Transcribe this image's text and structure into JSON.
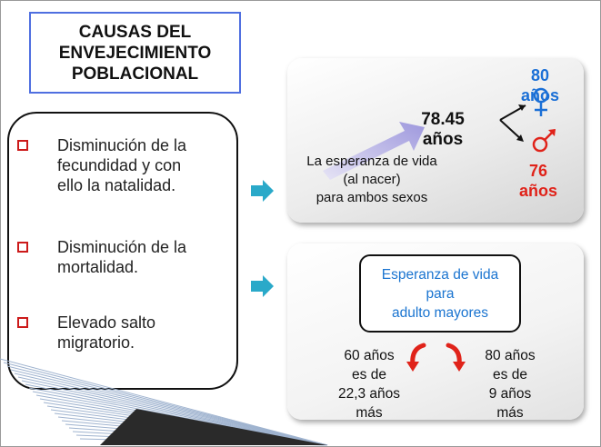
{
  "title": {
    "lines": [
      "CAUSAS DEL",
      "ENVEJECIMIENTO",
      "POBLACIONAL"
    ]
  },
  "causes": {
    "items": [
      {
        "lines": [
          "Disminución de la",
          "fecundidad y con",
          "ello la natalidad."
        ]
      },
      {
        "lines": [
          "Disminución de la",
          "mortalidad."
        ]
      },
      {
        "lines": [
          "Elevado salto",
          "migratorio."
        ]
      }
    ]
  },
  "life_expectancy": {
    "value": "78.45",
    "unit": "años",
    "description_lines": [
      "La esperanza de vida",
      "(al nacer)",
      "para ambos sexos"
    ],
    "female": {
      "value": "80",
      "unit": "años",
      "color": "#1a6fd6",
      "icon": "female-symbol"
    },
    "male": {
      "value": "76",
      "unit": "años",
      "color": "#e0231a",
      "icon": "male-symbol"
    }
  },
  "adult": {
    "title_lines": [
      "Esperanza de vida",
      "para",
      "adulto mayores"
    ],
    "at_60": {
      "lines": [
        "60 años",
        "es de",
        "22,3 años",
        "más"
      ]
    },
    "at_80": {
      "lines": [
        "80 años",
        "es de",
        "9 años",
        "más"
      ]
    }
  },
  "colors": {
    "accent_arrow": "#2aa9c9",
    "bullet": "#cc1a1a",
    "title_border": "#4f6fe0",
    "curved_arrow": "#e0231a"
  },
  "icons": [
    "right-arrow-icon",
    "female-symbol-icon",
    "male-symbol-icon",
    "curved-arrow-icon"
  ]
}
